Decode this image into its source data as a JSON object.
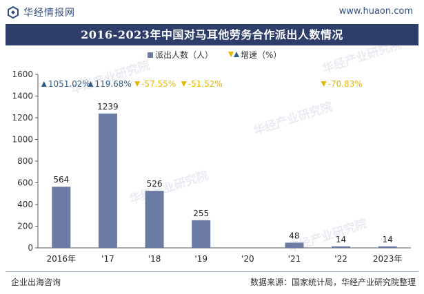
{
  "header": {
    "brand_name": "华经情报网",
    "url": "www.huaon.com"
  },
  "footer": {
    "left": "企业出海咨询",
    "right": "数据来源：国家统计局，华经产业研究院整理"
  },
  "watermark": "华经产业研究院",
  "colors": {
    "title_bar": "#2d3e6b",
    "bar": "#6b7ba4",
    "up_marker": "#2f5c84",
    "down_marker": "#e6b800",
    "brand": "#2f4d7f"
  },
  "chart_data": {
    "type": "bar",
    "title": "2016-2023年中国对马耳他劳务合作派出人数情况",
    "categories": [
      "2016年",
      "'17",
      "'18",
      "'19",
      "'20",
      "'21",
      "'22",
      "2023年"
    ],
    "series": [
      {
        "name": "派出人数（人）",
        "values": [
          564,
          1239,
          526,
          255,
          null,
          48,
          14,
          14
        ]
      }
    ],
    "growth": {
      "name": "增速（%）",
      "labels": [
        "1051.02%",
        "119.68%",
        "-57.55%",
        "-51.52%",
        "",
        "",
        "-70.83%",
        ""
      ],
      "directions": [
        "up",
        "up",
        "down",
        "down",
        "",
        "",
        "down",
        ""
      ]
    },
    "data_labels": [
      "564",
      "1239",
      "526",
      "255",
      "",
      "48",
      "14",
      "14"
    ],
    "yticks": [
      0,
      200,
      400,
      600,
      800,
      1000,
      1200,
      1400,
      1600
    ],
    "ylim": [
      0,
      1600
    ],
    "legend_position": "top-center",
    "grid": false
  }
}
